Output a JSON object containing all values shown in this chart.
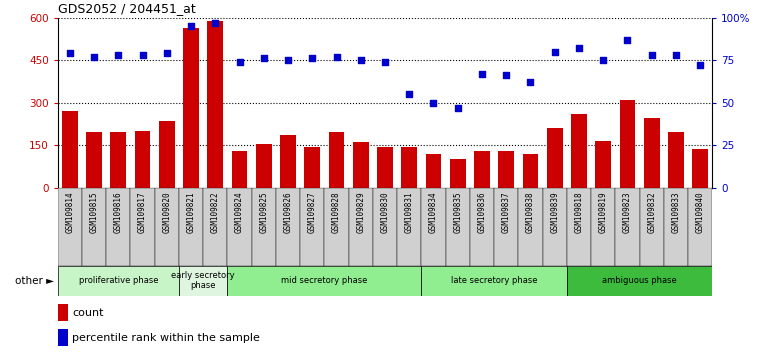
{
  "title": "GDS2052 / 204451_at",
  "samples": [
    "GSM109814",
    "GSM109815",
    "GSM109816",
    "GSM109817",
    "GSM109820",
    "GSM109821",
    "GSM109822",
    "GSM109824",
    "GSM109825",
    "GSM109826",
    "GSM109827",
    "GSM109828",
    "GSM109829",
    "GSM109830",
    "GSM109831",
    "GSM109834",
    "GSM109835",
    "GSM109836",
    "GSM109837",
    "GSM109838",
    "GSM109839",
    "GSM109818",
    "GSM109819",
    "GSM109823",
    "GSM109832",
    "GSM109833",
    "GSM109840"
  ],
  "counts": [
    270,
    195,
    195,
    200,
    235,
    565,
    590,
    130,
    155,
    185,
    145,
    195,
    160,
    145,
    145,
    120,
    100,
    130,
    130,
    120,
    210,
    260,
    165,
    310,
    245,
    195,
    135
  ],
  "percentiles": [
    79,
    77,
    78,
    78,
    79,
    95,
    97,
    74,
    76,
    75,
    76,
    77,
    75,
    74,
    55,
    50,
    47,
    67,
    66,
    62,
    80,
    82,
    75,
    87,
    78,
    78,
    72
  ],
  "phases": [
    {
      "label": "proliferative phase",
      "start": 0,
      "end": 5,
      "color": "#c8f5c8"
    },
    {
      "label": "early secretory\nphase",
      "start": 5,
      "end": 7,
      "color": "#e0f5e0"
    },
    {
      "label": "mid secretory phase",
      "start": 7,
      "end": 15,
      "color": "#90EE90"
    },
    {
      "label": "late secretory phase",
      "start": 15,
      "end": 21,
      "color": "#90EE90"
    },
    {
      "label": "ambiguous phase",
      "start": 21,
      "end": 27,
      "color": "#3dbb3d"
    }
  ],
  "bar_color": "#cc0000",
  "dot_color": "#0000cc",
  "ylim_left": [
    0,
    600
  ],
  "ylim_right": [
    0,
    100
  ],
  "yticks_left": [
    0,
    150,
    300,
    450,
    600
  ],
  "yticks_right": [
    0,
    25,
    50,
    75,
    100
  ],
  "background_color": "#f0f0f0",
  "tick_bg_color": "#d0d0d0"
}
